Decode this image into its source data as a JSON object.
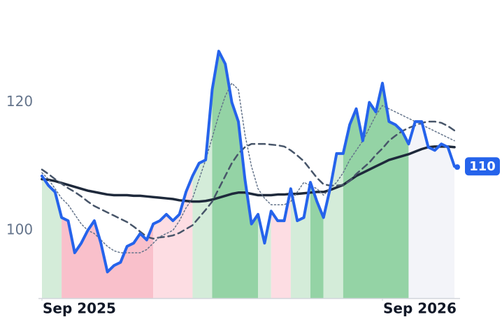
{
  "chart_data": {
    "type": "line",
    "x": [
      0,
      1,
      2,
      3,
      4,
      5,
      6,
      7,
      8,
      9,
      10,
      11,
      12,
      13,
      14,
      15,
      16,
      17,
      18,
      19,
      20,
      21,
      22,
      23,
      24,
      25,
      26,
      27,
      28,
      29,
      30,
      31,
      32,
      33,
      34,
      35,
      36,
      37,
      38,
      39,
      40,
      41,
      42,
      43,
      44,
      45,
      46,
      47,
      48,
      49,
      50,
      51,
      52,
      53,
      54,
      55,
      56,
      57,
      58,
      59,
      60,
      61,
      62,
      63
    ],
    "xlim": [
      0,
      63
    ],
    "xticks": [
      {
        "value": 0,
        "label": "Sep 2025"
      },
      {
        "value": 52,
        "label": "Sep 2026"
      }
    ],
    "ylim": [
      89.4,
      136
    ],
    "yticks": [
      100,
      120
    ],
    "series": [
      {
        "color": "#2563eb",
        "width": 4,
        "dash": "none",
        "values": [
          108.5,
          107,
          106,
          102,
          101.5,
          96.5,
          98,
          100,
          101.5,
          98,
          93.5,
          94.5,
          95,
          97.5,
          98,
          99.5,
          98.5,
          101,
          101.5,
          102.5,
          101.5,
          102.5,
          106,
          108.5,
          110.5,
          111,
          122,
          128,
          126,
          120,
          117,
          108,
          101,
          102.5,
          98,
          103,
          101.5,
          101.5,
          106.5,
          101.5,
          102,
          107.5,
          104.5,
          102,
          106.5,
          112,
          112,
          116.5,
          119,
          114,
          120,
          118.5,
          123,
          117,
          116.5,
          115.5,
          113.5,
          117,
          117,
          113,
          112.5,
          113.5,
          113,
          110
        ]
      },
      {
        "color": "#64748b",
        "width": 1.5,
        "dash": "2 3",
        "values": [
          109,
          108,
          106.5,
          105,
          104,
          102.5,
          101,
          100,
          99.5,
          98.5,
          97.5,
          96.8,
          96.5,
          96.5,
          96.5,
          96.5,
          97,
          98,
          99,
          99.5,
          100,
          101.5,
          103.5,
          105,
          108,
          111,
          114.5,
          118,
          121,
          123,
          122,
          115,
          110,
          106.5,
          105,
          104,
          104,
          104,
          104.5,
          106,
          107.5,
          107,
          106.5,
          105.5,
          106.5,
          107.5,
          109,
          111,
          112.5,
          114,
          116,
          118,
          119.5,
          119,
          118.5,
          118,
          117.5,
          117,
          116.5,
          116,
          115.5,
          115,
          114.5,
          114
        ]
      },
      {
        "color": "#475569",
        "width": 2.5,
        "dash": "9 6",
        "values": [
          109.5,
          108.8,
          108,
          107.3,
          106.6,
          106,
          105.3,
          104.5,
          103.8,
          103.3,
          102.8,
          102.3,
          101.8,
          101.3,
          100.6,
          99.8,
          99,
          98.7,
          98.9,
          99,
          99.2,
          99.6,
          100.2,
          100.8,
          102,
          103.2,
          104.5,
          106.5,
          108.5,
          110.5,
          112,
          113,
          113.5,
          113.5,
          113.5,
          113.4,
          113.3,
          113.1,
          112.5,
          111.7,
          110.8,
          109.5,
          108.2,
          107.2,
          107,
          107,
          107.1,
          107.7,
          108.8,
          109.7,
          110.6,
          111.8,
          112.8,
          114,
          114.8,
          115.5,
          116,
          116.4,
          116.8,
          117,
          117,
          116.8,
          116.3,
          115.6
        ]
      },
      {
        "color": "#1e293b",
        "width": 3.5,
        "dash": "none",
        "values": [
          108,
          107.9,
          107.7,
          107.4,
          107.1,
          106.8,
          106.5,
          106.2,
          106,
          105.8,
          105.6,
          105.5,
          105.5,
          105.5,
          105.4,
          105.4,
          105.3,
          105.2,
          105.1,
          105,
          104.9,
          104.7,
          104.6,
          104.5,
          104.5,
          104.6,
          104.8,
          105.1,
          105.4,
          105.7,
          105.9,
          105.9,
          105.7,
          105.5,
          105.5,
          105.5,
          105.6,
          105.6,
          105.7,
          105.7,
          105.8,
          105.9,
          106,
          106,
          106.3,
          106.7,
          107.1,
          107.8,
          108.5,
          109,
          109.5,
          110,
          110.5,
          111,
          111.3,
          111.6,
          111.9,
          112.3,
          112.7,
          113,
          113.1,
          113.1,
          113.1,
          113
        ]
      }
    ],
    "bands": [
      {
        "from": 0,
        "to": 3,
        "color": "#d4ecd9"
      },
      {
        "from": 3,
        "to": 17,
        "color": "#f9c0cb"
      },
      {
        "from": 17,
        "to": 23,
        "color": "#fddde3"
      },
      {
        "from": 23,
        "to": 26,
        "color": "#d4ecd9"
      },
      {
        "from": 26,
        "to": 33,
        "color": "#94d3a5"
      },
      {
        "from": 33,
        "to": 35,
        "color": "#d4ecd9"
      },
      {
        "from": 35,
        "to": 38,
        "color": "#fddde3"
      },
      {
        "from": 38,
        "to": 41,
        "color": "#d4ecd9"
      },
      {
        "from": 41,
        "to": 43,
        "color": "#94d3a5"
      },
      {
        "from": 43,
        "to": 46,
        "color": "#d4ecd9"
      },
      {
        "from": 46,
        "to": 56,
        "color": "#94d3a5"
      },
      {
        "from": 56,
        "to": 63,
        "color": "#f3f4f9"
      }
    ],
    "badge_color": "#2563eb"
  }
}
